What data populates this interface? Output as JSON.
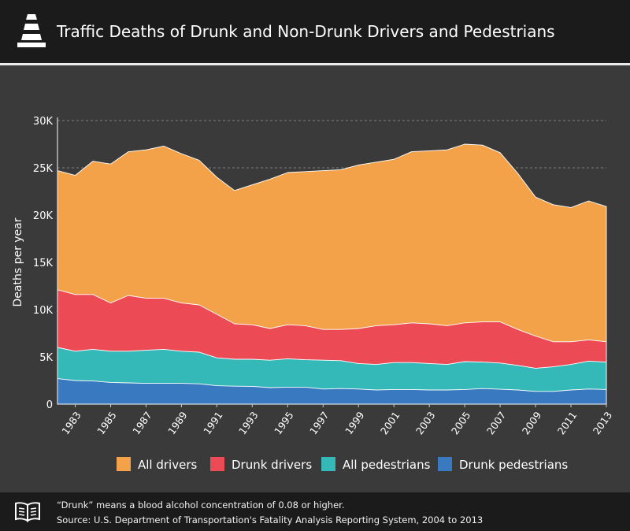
{
  "header": {
    "title": "Traffic Deaths of Drunk and Non-Drunk Drivers and Pedestrians",
    "icon": "traffic-cone-icon"
  },
  "footer": {
    "icon": "open-book-icon",
    "note": "“Drunk” means a blood alcohol concentration of 0.08 or higher.",
    "source": "Source: U.S. Department of Transportation's Fatality Analysis Reporting System, 2004 to 2013"
  },
  "colors": {
    "all_drivers": "#f4a24a",
    "drunk_drivers": "#ec4b55",
    "all_pedestrians": "#35b9b8",
    "drunk_pedestrians": "#3979c0",
    "board": "#3a3a3a"
  },
  "chart_data": {
    "type": "area",
    "title": "Traffic Deaths of Drunk and Non-Drunk Drivers and Pedestrians",
    "ylabel": "Deaths per year",
    "xlabel": "",
    "ylim": [
      0,
      30000
    ],
    "y_ticks": [
      "0",
      "5K",
      "10K",
      "15K",
      "20K",
      "25K",
      "30K"
    ],
    "y_tick_values": [
      0,
      5000,
      10000,
      15000,
      20000,
      25000,
      30000
    ],
    "x_tick_labels": [
      "1983",
      "1985",
      "1987",
      "1989",
      "1991",
      "1993",
      "1995",
      "1997",
      "1999",
      "2001",
      "2003",
      "2005",
      "2007",
      "2009",
      "2011",
      "2013"
    ],
    "grid": true,
    "legend": "bottom",
    "x": [
      1982,
      1983,
      1984,
      1985,
      1986,
      1987,
      1988,
      1989,
      1990,
      1991,
      1992,
      1993,
      1994,
      1995,
      1996,
      1997,
      1998,
      1999,
      2000,
      2001,
      2002,
      2003,
      2004,
      2005,
      2006,
      2007,
      2008,
      2009,
      2010,
      2011,
      2012,
      2013
    ],
    "series": [
      {
        "name": "All drivers",
        "key": "all_drivers",
        "values": [
          24700,
          24200,
          25700,
          25400,
          26700,
          26900,
          27300,
          26500,
          25800,
          24000,
          22600,
          23200,
          23800,
          24500,
          24600,
          24700,
          24800,
          25300,
          25600,
          25900,
          26700,
          26800,
          26900,
          27500,
          27400,
          26600,
          24400,
          21900,
          21100,
          20800,
          21500,
          20900
        ]
      },
      {
        "name": "Drunk drivers",
        "key": "drunk_drivers",
        "values": [
          12100,
          11600,
          11600,
          10700,
          11500,
          11200,
          11200,
          10700,
          10500,
          9500,
          8500,
          8400,
          8000,
          8400,
          8300,
          7900,
          7900,
          8000,
          8300,
          8400,
          8600,
          8500,
          8300,
          8600,
          8700,
          8700,
          7900,
          7200,
          6600,
          6600,
          6800,
          6600
        ]
      },
      {
        "name": "All pedestrians",
        "key": "all_pedestrians",
        "values": [
          6000,
          5600,
          5800,
          5600,
          5600,
          5700,
          5800,
          5600,
          5500,
          4900,
          4750,
          4750,
          4650,
          4800,
          4700,
          4650,
          4600,
          4300,
          4200,
          4400,
          4400,
          4300,
          4200,
          4500,
          4450,
          4350,
          4100,
          3800,
          3950,
          4200,
          4550,
          4450
        ]
      },
      {
        "name": "Drunk pedestrians",
        "key": "drunk_pedestrians",
        "values": [
          2700,
          2500,
          2450,
          2300,
          2250,
          2200,
          2200,
          2200,
          2150,
          1950,
          1900,
          1880,
          1750,
          1800,
          1800,
          1600,
          1650,
          1600,
          1500,
          1550,
          1550,
          1500,
          1500,
          1550,
          1650,
          1580,
          1500,
          1350,
          1350,
          1500,
          1600,
          1550
        ]
      }
    ]
  }
}
